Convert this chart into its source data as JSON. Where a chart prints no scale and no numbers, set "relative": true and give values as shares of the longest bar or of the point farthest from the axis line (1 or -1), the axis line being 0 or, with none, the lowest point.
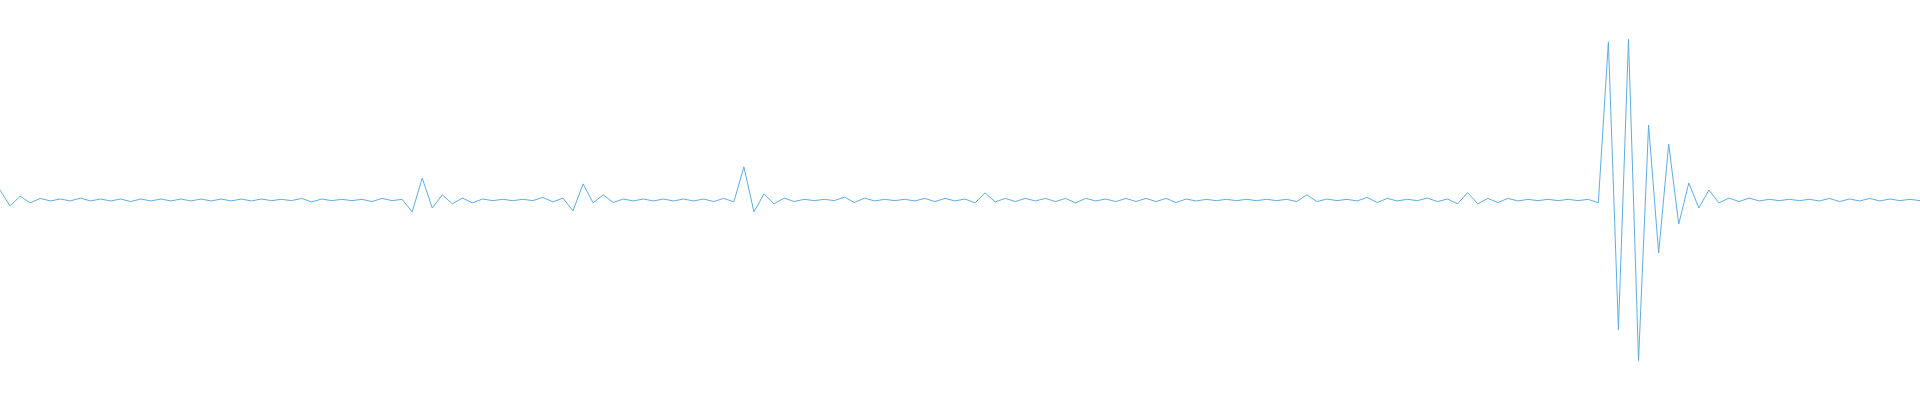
{
  "chart_data": {
    "type": "line",
    "relative": true,
    "color": "#5dade2",
    "categories": [
      null,
      null,
      null,
      null,
      null,
      null,
      null,
      null,
      null,
      null,
      null,
      null,
      null,
      null,
      null,
      null,
      null,
      null,
      null,
      null,
      null,
      null,
      null,
      null,
      null,
      null,
      null,
      null,
      null,
      null,
      null,
      null,
      null,
      null,
      null,
      null,
      null,
      null,
      null,
      null,
      null,
      null,
      null,
      null,
      null,
      null,
      null,
      null,
      null,
      null,
      null,
      null,
      null,
      null,
      null,
      null,
      null,
      null,
      null,
      null,
      null,
      null,
      null,
      null,
      null,
      null,
      null,
      null,
      null,
      null,
      null,
      null,
      null,
      null,
      null,
      null,
      null,
      null,
      null,
      null,
      null,
      null,
      null,
      null,
      null,
      null,
      null,
      null,
      null,
      null,
      null,
      null,
      null,
      null,
      null,
      null,
      null,
      null,
      null,
      null,
      null,
      null,
      null,
      null,
      null,
      null,
      null,
      null,
      null,
      null,
      null,
      null,
      null,
      null,
      null,
      null,
      null,
      null,
      null,
      null,
      null,
      null,
      null,
      null,
      null,
      null,
      null,
      null,
      null,
      null,
      null,
      null,
      null,
      null,
      null,
      null,
      null,
      null,
      null,
      null,
      null,
      null,
      null,
      null,
      null,
      null,
      null,
      null,
      null,
      null,
      null,
      null,
      null,
      null,
      null,
      null,
      null,
      null,
      null,
      null,
      null,
      null,
      null,
      null,
      null,
      null,
      null,
      null,
      null,
      null,
      null,
      null,
      null,
      null,
      null,
      null,
      null,
      null,
      null,
      null,
      null,
      null,
      null,
      null,
      null,
      null,
      null,
      null,
      null,
      null,
      null,
      null
    ],
    "values": [
      0.531,
      0.481,
      0.512,
      0.491,
      0.505,
      0.497,
      0.503,
      0.497,
      0.506,
      0.497,
      0.503,
      0.497,
      0.503,
      0.495,
      0.503,
      0.497,
      0.503,
      0.497,
      0.503,
      0.497,
      0.503,
      0.497,
      0.503,
      0.497,
      0.503,
      0.497,
      0.503,
      0.498,
      0.502,
      0.498,
      0.505,
      0.494,
      0.503,
      0.498,
      0.502,
      0.498,
      0.502,
      0.495,
      0.505,
      0.498,
      0.502,
      0.463,
      0.568,
      0.475,
      0.516,
      0.488,
      0.506,
      0.491,
      0.503,
      0.498,
      0.502,
      0.498,
      0.502,
      0.498,
      0.508,
      0.494,
      0.506,
      0.466,
      0.55,
      0.491,
      0.516,
      0.492,
      0.503,
      0.497,
      0.503,
      0.497,
      0.503,
      0.497,
      0.503,
      0.497,
      0.503,
      0.495,
      0.505,
      0.494,
      0.603,
      0.463,
      0.519,
      0.488,
      0.506,
      0.495,
      0.502,
      0.498,
      0.502,
      0.498,
      0.509,
      0.492,
      0.506,
      0.497,
      0.502,
      0.498,
      0.502,
      0.497,
      0.505,
      0.495,
      0.505,
      0.497,
      0.503,
      0.491,
      0.522,
      0.494,
      0.505,
      0.495,
      0.505,
      0.497,
      0.505,
      0.495,
      0.505,
      0.491,
      0.505,
      0.497,
      0.503,
      0.495,
      0.505,
      0.495,
      0.505,
      0.495,
      0.505,
      0.492,
      0.503,
      0.497,
      0.502,
      0.498,
      0.502,
      0.498,
      0.502,
      0.498,
      0.502,
      0.498,
      0.502,
      0.495,
      0.516,
      0.495,
      0.503,
      0.498,
      0.502,
      0.497,
      0.508,
      0.492,
      0.505,
      0.497,
      0.502,
      0.498,
      0.506,
      0.495,
      0.503,
      0.488,
      0.523,
      0.488,
      0.505,
      0.492,
      0.505,
      0.497,
      0.502,
      0.498,
      0.502,
      0.498,
      0.502,
      0.498,
      0.502,
      0.491,
      0.992,
      0.096,
      1.0,
      0.0,
      0.733,
      0.335,
      0.674,
      0.425,
      0.553,
      0.475,
      0.531,
      0.491,
      0.506,
      0.495,
      0.506,
      0.497,
      0.502,
      0.498,
      0.502,
      0.498,
      0.502,
      0.497,
      0.505,
      0.495,
      0.503,
      0.497,
      0.505,
      0.497,
      0.503,
      0.498,
      0.502,
      0.498
    ]
  }
}
